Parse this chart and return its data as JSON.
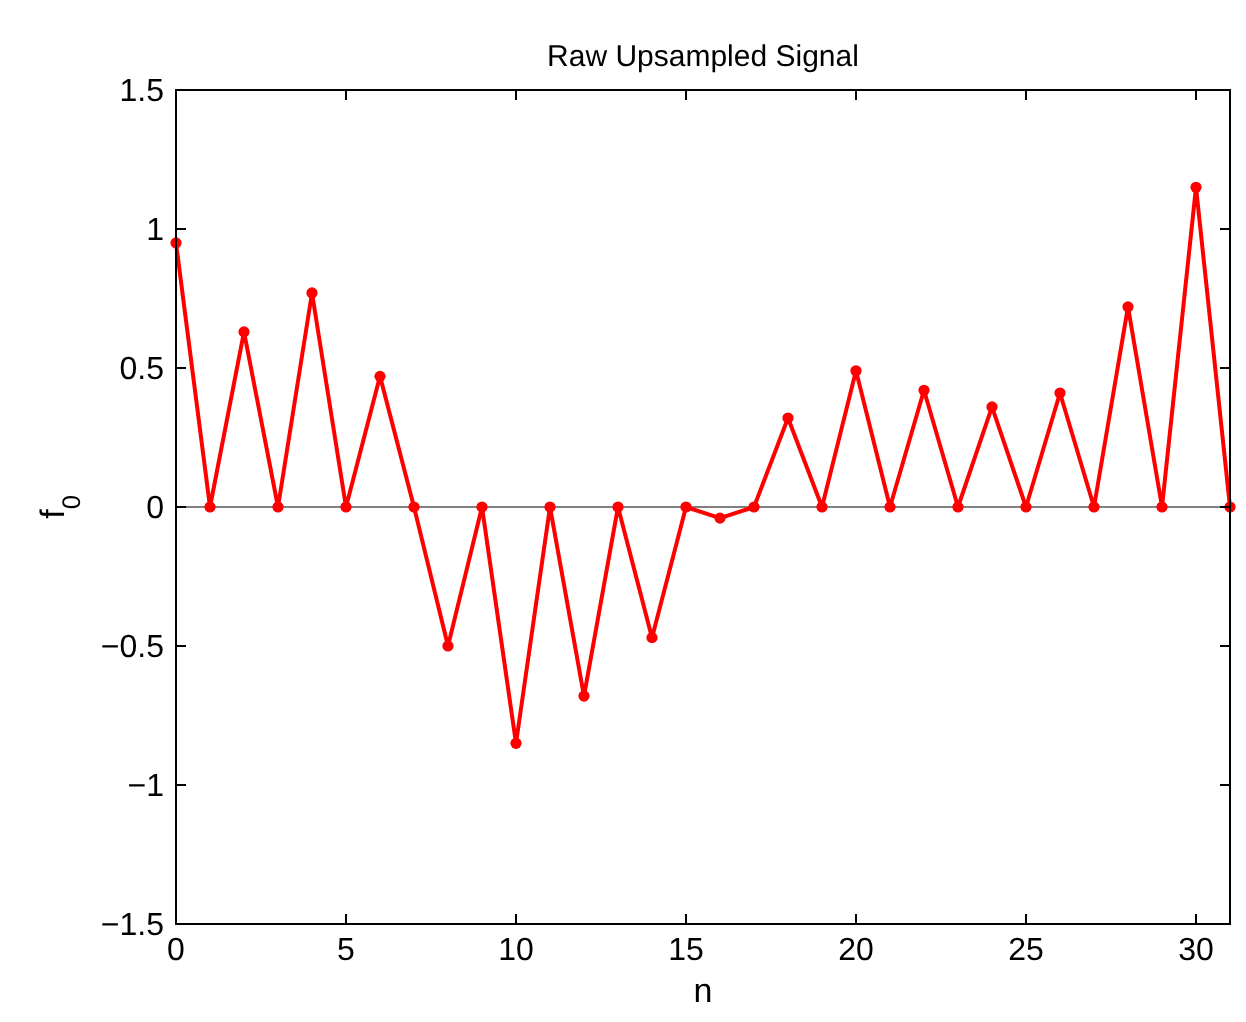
{
  "chart_data": {
    "type": "line",
    "title": "Raw Upsampled Signal",
    "xlabel": "n",
    "ylabel": "f$_{0}$",
    "x": [
      0,
      1,
      2,
      3,
      4,
      5,
      6,
      7,
      8,
      9,
      10,
      11,
      12,
      13,
      14,
      15,
      16,
      17,
      18,
      19,
      20,
      21,
      22,
      23,
      24,
      25,
      26,
      27,
      28,
      29,
      30,
      31
    ],
    "series": [
      {
        "color": "#ff0000",
        "values": [
          0.95,
          0,
          0.63,
          0,
          0.77,
          0,
          0.47,
          0,
          -0.5,
          0,
          -0.85,
          0,
          -0.68,
          0,
          -0.47,
          0,
          -0.04,
          0,
          0.32,
          0,
          0.49,
          0,
          0.42,
          0,
          0.36,
          0,
          0.41,
          0,
          0.72,
          0,
          1.15,
          0
        ]
      }
    ],
    "xlim": [
      0,
      31
    ],
    "xticks": [
      0,
      5,
      10,
      15,
      20,
      25,
      30
    ],
    "ylim": [
      -1.5,
      1.5
    ],
    "yticks": [
      -1.5,
      -1,
      -0.5,
      0,
      0.5,
      1,
      1.5
    ],
    "ref_lines": [
      {
        "axis": "y",
        "value": 0,
        "color": "#808080"
      }
    ],
    "marker": "circle",
    "line_style": "solid"
  }
}
